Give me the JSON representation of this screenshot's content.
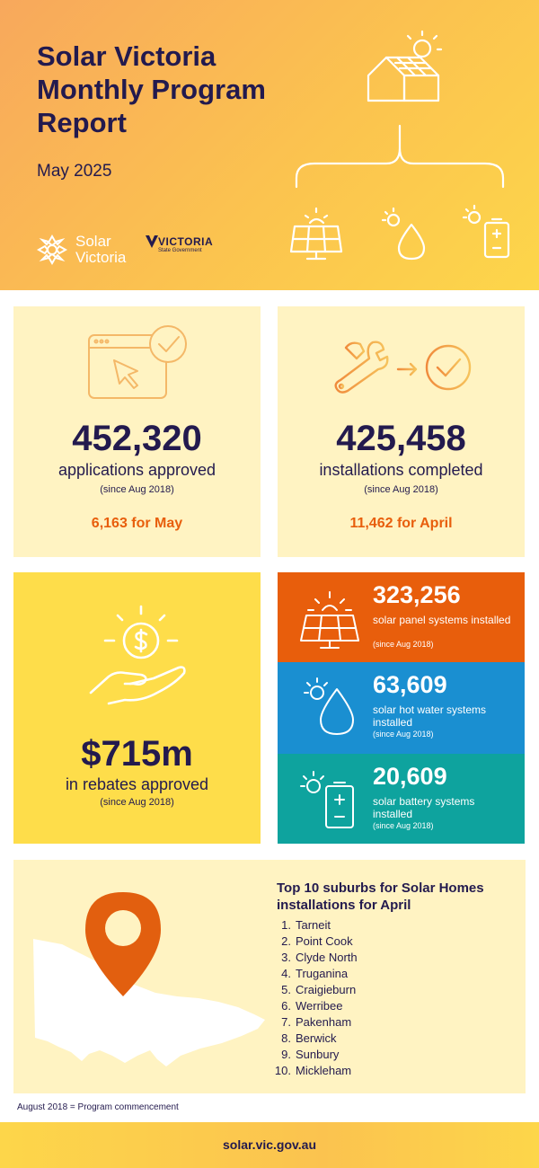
{
  "header": {
    "title": "Solar Victoria Monthly Program Report",
    "subtitle": "May 2025",
    "logo_solar": "Solar Victoria",
    "logo_vic": "VICTORIA",
    "logo_vic_sub": "State Government"
  },
  "applications": {
    "value": "452,320",
    "label": "applications approved",
    "since": "(since Aug 2018)",
    "monthly": "6,163 for May"
  },
  "installations": {
    "value": "425,458",
    "label": "installations completed",
    "since": "(since Aug 2018)",
    "monthly": "11,462 for April"
  },
  "rebates": {
    "value": "$715m",
    "label": "in rebates approved",
    "since": "(since Aug 2018)"
  },
  "systems": [
    {
      "value": "323,256",
      "label": "solar panel systems installed",
      "since": "(since Aug 2018)",
      "color": "#e85e0c",
      "icon": "solar-panel-icon"
    },
    {
      "value": "63,609",
      "label": "solar hot water systems installed",
      "since": "(since Aug 2018)",
      "color": "#1a8fd1",
      "icon": "hot-water-icon"
    },
    {
      "value": "20,609",
      "label": "solar battery systems installed",
      "since": "(since Aug 2018)",
      "color": "#0ea39e",
      "icon": "battery-icon"
    }
  ],
  "suburbs": {
    "title": "Top 10 suburbs for Solar Homes installations for April",
    "items": [
      {
        "n": "1.",
        "name": "Tarneit"
      },
      {
        "n": "2.",
        "name": "Point Cook"
      },
      {
        "n": "3.",
        "name": "Clyde North"
      },
      {
        "n": "4.",
        "name": "Truganina"
      },
      {
        "n": "5.",
        "name": "Craigieburn"
      },
      {
        "n": "6.",
        "name": "Werribee"
      },
      {
        "n": "7.",
        "name": "Pakenham"
      },
      {
        "n": "8.",
        "name": "Berwick"
      },
      {
        "n": "9.",
        "name": "Sunbury"
      },
      {
        "n": "10.",
        "name": "Mickleham"
      }
    ]
  },
  "footnote": "August 2018 = Program commencement",
  "footer": "solar.vic.gov.au"
}
